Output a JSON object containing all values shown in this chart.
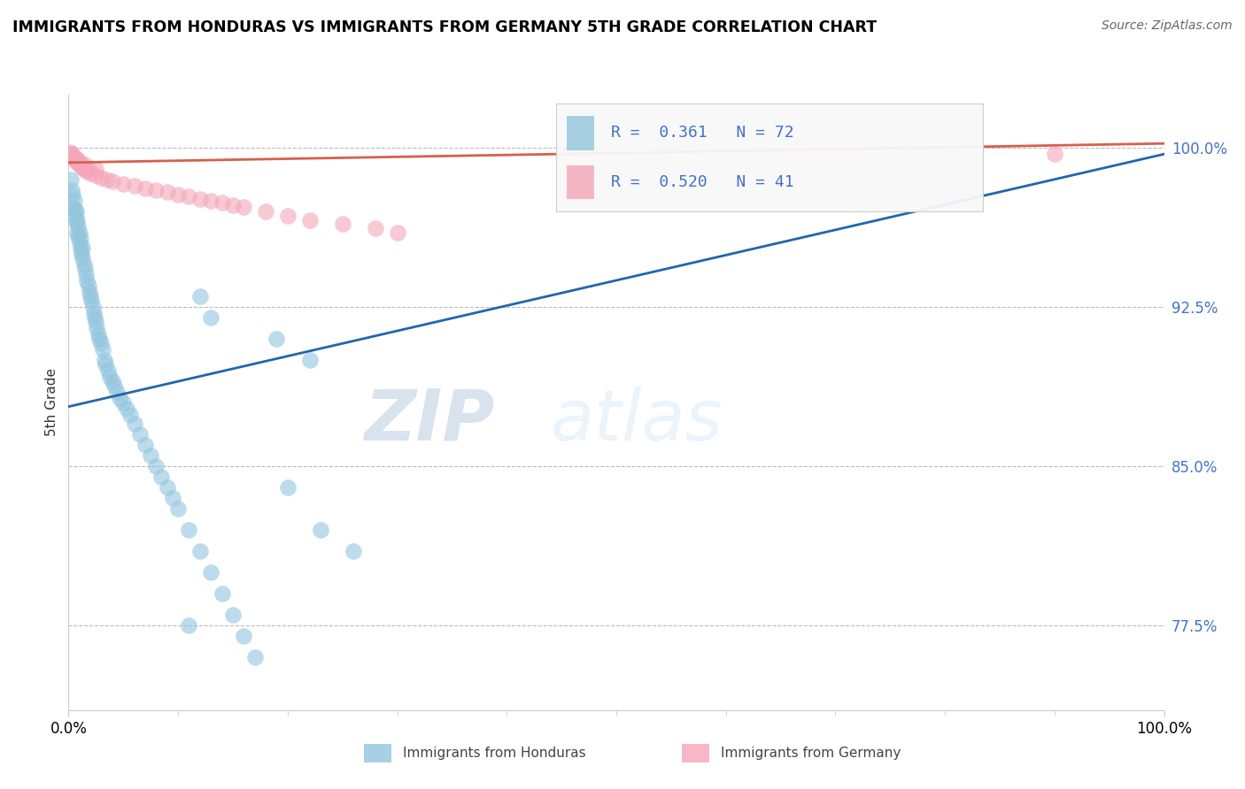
{
  "title": "IMMIGRANTS FROM HONDURAS VS IMMIGRANTS FROM GERMANY 5TH GRADE CORRELATION CHART",
  "source": "Source: ZipAtlas.com",
  "ylabel": "5th Grade",
  "y_ticks": [
    0.775,
    0.85,
    0.925,
    1.0
  ],
  "y_tick_labels": [
    "77.5%",
    "85.0%",
    "92.5%",
    "100.0%"
  ],
  "xlim": [
    0.0,
    1.0
  ],
  "ylim": [
    0.735,
    1.025
  ],
  "blue_color": "#92c5de",
  "pink_color": "#f4a6b8",
  "blue_line_color": "#2166ac",
  "pink_line_color": "#d6604d",
  "watermark_zip": "ZIP",
  "watermark_atlas": "atlas",
  "blue_trend_x": [
    0.0,
    1.0
  ],
  "blue_trend_y": [
    0.878,
    0.997
  ],
  "pink_trend_x": [
    0.0,
    1.0
  ],
  "pink_trend_y": [
    0.993,
    1.002
  ],
  "honduras_scatter_x": [
    0.002,
    0.003,
    0.004,
    0.004,
    0.005,
    0.006,
    0.006,
    0.007,
    0.007,
    0.008,
    0.008,
    0.009,
    0.009,
    0.01,
    0.01,
    0.011,
    0.011,
    0.012,
    0.013,
    0.013,
    0.014,
    0.015,
    0.016,
    0.017,
    0.018,
    0.019,
    0.02,
    0.021,
    0.022,
    0.023,
    0.024,
    0.025,
    0.026,
    0.027,
    0.028,
    0.03,
    0.031,
    0.033,
    0.034,
    0.036,
    0.038,
    0.04,
    0.042,
    0.044,
    0.047,
    0.05,
    0.053,
    0.056,
    0.06,
    0.065,
    0.07,
    0.075,
    0.08,
    0.085,
    0.09,
    0.095,
    0.1,
    0.11,
    0.12,
    0.13,
    0.14,
    0.15,
    0.16,
    0.17,
    0.2,
    0.23,
    0.26,
    0.12,
    0.13,
    0.19,
    0.22,
    0.11
  ],
  "honduras_scatter_y": [
    0.985,
    0.98,
    0.978,
    0.972,
    0.975,
    0.971,
    0.968,
    0.965,
    0.97,
    0.96,
    0.966,
    0.958,
    0.963,
    0.955,
    0.96,
    0.952,
    0.957,
    0.95,
    0.948,
    0.953,
    0.945,
    0.943,
    0.94,
    0.937,
    0.935,
    0.932,
    0.93,
    0.928,
    0.925,
    0.922,
    0.92,
    0.918,
    0.915,
    0.912,
    0.91,
    0.908,
    0.905,
    0.9,
    0.898,
    0.895,
    0.892,
    0.89,
    0.888,
    0.885,
    0.882,
    0.88,
    0.877,
    0.874,
    0.87,
    0.865,
    0.86,
    0.855,
    0.85,
    0.845,
    0.84,
    0.835,
    0.83,
    0.82,
    0.81,
    0.8,
    0.79,
    0.78,
    0.77,
    0.76,
    0.84,
    0.82,
    0.81,
    0.93,
    0.92,
    0.91,
    0.9,
    0.775
  ],
  "germany_scatter_x": [
    0.001,
    0.002,
    0.003,
    0.004,
    0.005,
    0.006,
    0.007,
    0.008,
    0.009,
    0.01,
    0.012,
    0.014,
    0.016,
    0.018,
    0.02,
    0.025,
    0.03,
    0.035,
    0.04,
    0.05,
    0.06,
    0.07,
    0.08,
    0.09,
    0.1,
    0.11,
    0.12,
    0.13,
    0.14,
    0.15,
    0.16,
    0.18,
    0.2,
    0.22,
    0.25,
    0.28,
    0.3,
    0.01,
    0.015,
    0.025,
    0.9
  ],
  "germany_scatter_y": [
    0.998,
    0.997,
    0.996,
    0.997,
    0.995,
    0.994,
    0.995,
    0.993,
    0.994,
    0.992,
    0.991,
    0.99,
    0.989,
    0.99,
    0.988,
    0.987,
    0.986,
    0.985,
    0.984,
    0.983,
    0.982,
    0.981,
    0.98,
    0.979,
    0.978,
    0.977,
    0.976,
    0.975,
    0.974,
    0.973,
    0.972,
    0.97,
    0.968,
    0.966,
    0.964,
    0.962,
    0.96,
    0.993,
    0.992,
    0.99,
    0.997
  ]
}
